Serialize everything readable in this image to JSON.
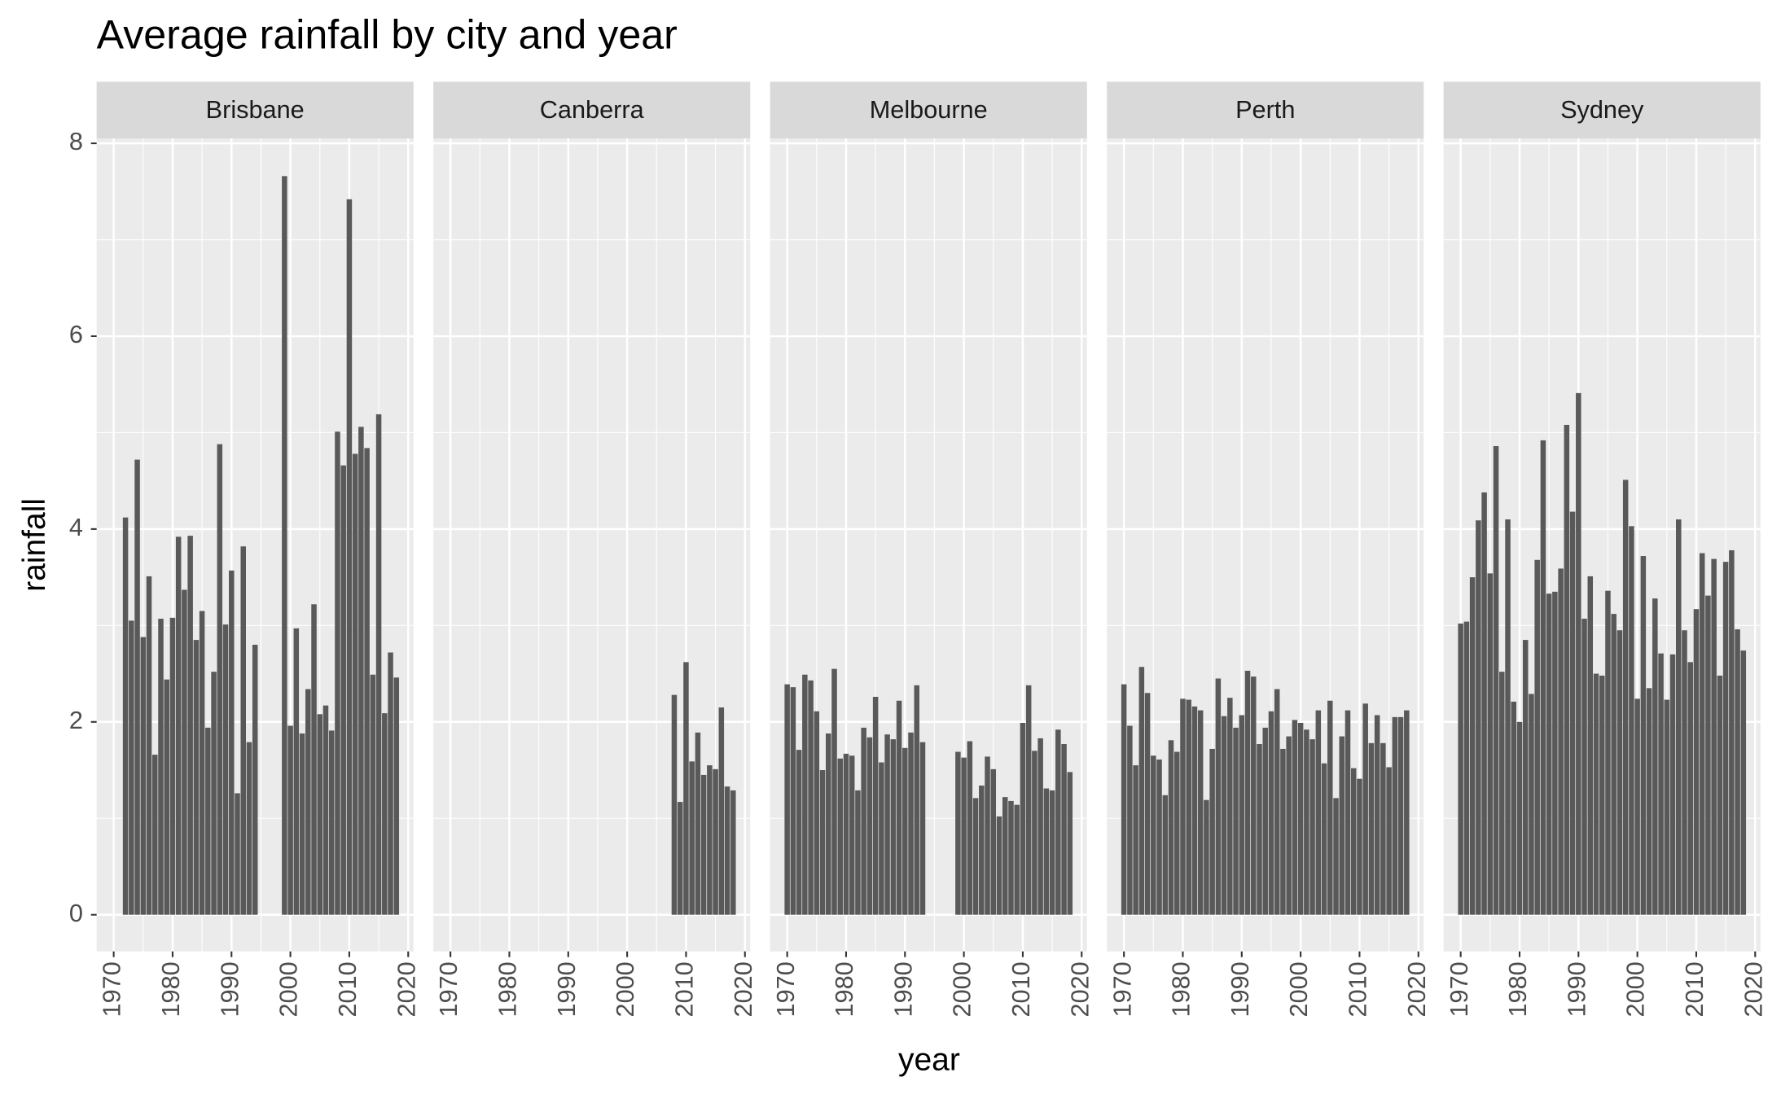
{
  "chart_data": {
    "type": "bar",
    "title": "Average rainfall by city and year",
    "x_label": "year",
    "y_label": "rainfall",
    "color": "#595959",
    "grid": true,
    "xlim": [
      1967.1,
      2020.9
    ],
    "xticks": [
      1970,
      1980,
      1990,
      2000,
      2010,
      2020
    ],
    "ylim": [
      -0.38,
      8.05
    ],
    "yticks": [
      0,
      2,
      4,
      6,
      8
    ],
    "facets": [
      {
        "name": "Brisbane",
        "x": [
          1972,
          1973,
          1974,
          1975,
          1976,
          1977,
          1978,
          1979,
          1980,
          1981,
          1982,
          1983,
          1984,
          1985,
          1986,
          1987,
          1988,
          1989,
          1990,
          1991,
          1992,
          1993,
          1994,
          1999,
          2000,
          2001,
          2002,
          2003,
          2004,
          2005,
          2006,
          2007,
          2008,
          2009,
          2010,
          2011,
          2012,
          2013,
          2014,
          2015,
          2016,
          2017,
          2018
        ],
        "values": [
          4.12,
          3.05,
          4.72,
          2.88,
          3.51,
          1.66,
          3.07,
          2.44,
          3.08,
          3.92,
          3.37,
          3.93,
          2.85,
          3.15,
          1.94,
          2.52,
          4.88,
          3.01,
          3.57,
          1.26,
          3.82,
          1.79,
          2.8,
          7.66,
          1.96,
          2.97,
          1.88,
          2.34,
          3.22,
          2.08,
          2.17,
          1.91,
          5.01,
          4.66,
          7.42,
          4.78,
          5.06,
          4.84,
          2.49,
          5.19,
          2.09,
          2.72,
          2.46
        ]
      },
      {
        "name": "Canberra",
        "x": [
          2008,
          2009,
          2010,
          2011,
          2012,
          2013,
          2014,
          2015,
          2016,
          2017,
          2018
        ],
        "values": [
          2.28,
          1.17,
          2.62,
          1.59,
          1.89,
          1.45,
          1.55,
          1.51,
          2.15,
          1.33,
          1.29
        ]
      },
      {
        "name": "Melbourne",
        "x": [
          1970,
          1971,
          1972,
          1973,
          1974,
          1975,
          1976,
          1977,
          1978,
          1979,
          1980,
          1981,
          1982,
          1983,
          1984,
          1985,
          1986,
          1987,
          1988,
          1989,
          1990,
          1991,
          1992,
          1993,
          1999,
          2000,
          2001,
          2002,
          2003,
          2004,
          2005,
          2006,
          2007,
          2008,
          2009,
          2010,
          2011,
          2012,
          2013,
          2014,
          2015,
          2016,
          2017,
          2018
        ],
        "values": [
          2.39,
          2.36,
          1.71,
          2.49,
          2.43,
          2.11,
          1.5,
          1.88,
          2.55,
          1.62,
          1.67,
          1.65,
          1.29,
          1.94,
          1.84,
          2.26,
          1.58,
          1.87,
          1.82,
          2.22,
          1.73,
          1.89,
          2.38,
          1.79,
          1.69,
          1.63,
          1.8,
          1.21,
          1.34,
          1.64,
          1.51,
          1.02,
          1.22,
          1.18,
          1.14,
          1.99,
          2.38,
          1.7,
          1.83,
          1.31,
          1.29,
          1.92,
          1.77,
          1.48
        ]
      },
      {
        "name": "Perth",
        "x": [
          1970,
          1971,
          1972,
          1973,
          1974,
          1975,
          1976,
          1977,
          1978,
          1979,
          1980,
          1981,
          1982,
          1983,
          1984,
          1985,
          1986,
          1987,
          1988,
          1989,
          1990,
          1991,
          1992,
          1993,
          1994,
          1995,
          1996,
          1997,
          1998,
          1999,
          2000,
          2001,
          2002,
          2003,
          2004,
          2005,
          2006,
          2007,
          2008,
          2009,
          2010,
          2011,
          2012,
          2013,
          2014,
          2015,
          2016,
          2017,
          2018
        ],
        "values": [
          2.39,
          1.96,
          1.55,
          2.57,
          2.3,
          1.65,
          1.61,
          1.24,
          1.81,
          1.69,
          2.24,
          2.23,
          2.16,
          2.12,
          1.19,
          1.72,
          2.45,
          2.06,
          2.25,
          1.94,
          2.07,
          2.53,
          2.47,
          1.77,
          1.94,
          2.11,
          2.34,
          1.72,
          1.85,
          2.02,
          1.99,
          1.92,
          1.82,
          2.12,
          1.57,
          2.22,
          1.21,
          1.85,
          2.12,
          1.52,
          1.41,
          2.19,
          1.78,
          2.07,
          1.78,
          1.53,
          2.05,
          2.05,
          2.12
        ]
      },
      {
        "name": "Sydney",
        "x": [
          1970,
          1971,
          1972,
          1973,
          1974,
          1975,
          1976,
          1977,
          1978,
          1979,
          1980,
          1981,
          1982,
          1983,
          1984,
          1985,
          1986,
          1987,
          1988,
          1989,
          1990,
          1991,
          1992,
          1993,
          1994,
          1995,
          1996,
          1997,
          1998,
          1999,
          2000,
          2001,
          2002,
          2003,
          2004,
          2005,
          2006,
          2007,
          2008,
          2009,
          2010,
          2011,
          2012,
          2013,
          2014,
          2015,
          2016,
          2017,
          2018
        ],
        "values": [
          3.02,
          3.04,
          3.5,
          4.09,
          4.38,
          3.54,
          4.86,
          2.52,
          4.1,
          2.21,
          2.0,
          2.85,
          2.29,
          3.68,
          4.92,
          3.33,
          3.35,
          3.59,
          5.08,
          4.18,
          5.41,
          3.07,
          3.51,
          2.5,
          2.48,
          3.36,
          3.12,
          2.95,
          4.51,
          4.03,
          2.24,
          3.72,
          2.35,
          3.28,
          2.71,
          2.23,
          2.7,
          4.1,
          2.95,
          2.62,
          3.17,
          3.75,
          3.31,
          3.69,
          2.48,
          3.66,
          3.78,
          2.96,
          2.74
        ]
      }
    ]
  }
}
